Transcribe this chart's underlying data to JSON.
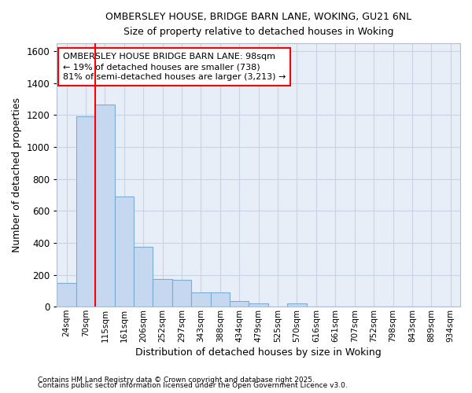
{
  "title_line1": "OMBERSLEY HOUSE, BRIDGE BARN LANE, WOKING, GU21 6NL",
  "title_line2": "Size of property relative to detached houses in Woking",
  "xlabel": "Distribution of detached houses by size in Woking",
  "ylabel": "Number of detached properties",
  "categories": [
    "24sqm",
    "70sqm",
    "115sqm",
    "161sqm",
    "206sqm",
    "252sqm",
    "297sqm",
    "343sqm",
    "388sqm",
    "434sqm",
    "479sqm",
    "525sqm",
    "570sqm",
    "616sqm",
    "661sqm",
    "707sqm",
    "752sqm",
    "798sqm",
    "843sqm",
    "889sqm",
    "934sqm"
  ],
  "bar_heights": [
    148,
    1195,
    1265,
    690,
    375,
    175,
    170,
    90,
    90,
    35,
    22,
    0,
    18,
    0,
    0,
    0,
    0,
    0,
    0,
    0,
    0
  ],
  "bar_color": "#c5d8f0",
  "bar_edge_color": "#7aadd4",
  "grid_color": "#c8d4e4",
  "background_color": "#e8eef8",
  "red_line_x": 1.5,
  "annotation_text": "OMBERSLEY HOUSE BRIDGE BARN LANE: 98sqm\n← 19% of detached houses are smaller (738)\n81% of semi-detached houses are larger (3,213) →",
  "footer_line1": "Contains HM Land Registry data © Crown copyright and database right 2025.",
  "footer_line2": "Contains public sector information licensed under the Open Government Licence v3.0.",
  "ylim": [
    0,
    1650
  ],
  "yticks": [
    0,
    200,
    400,
    600,
    800,
    1000,
    1200,
    1400,
    1600
  ]
}
